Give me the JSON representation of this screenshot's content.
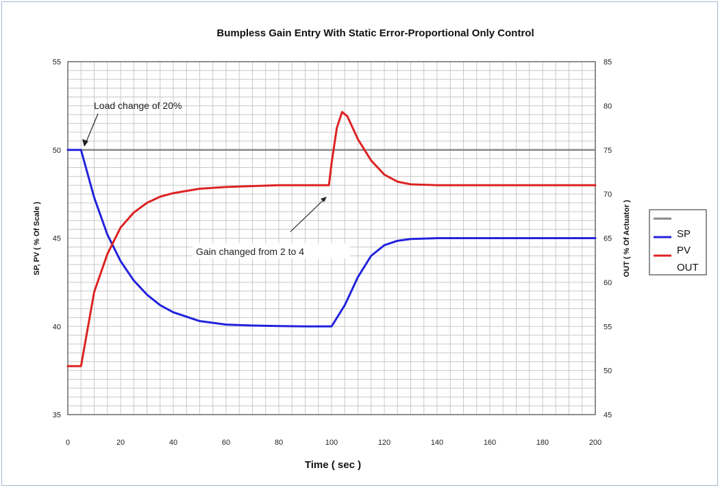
{
  "chart_data": {
    "type": "line",
    "title": "Bumpless Gain Entry With Static Error-Proportional Only Control",
    "xlabel": "Time ( sec )",
    "ylabel_left": "SP, PV ( % Of Scale )",
    "ylabel_right": "OUT ( % Of Actuator )",
    "xlim": [
      0,
      200
    ],
    "ylim_left": [
      35,
      55
    ],
    "ylim_right": [
      45,
      85
    ],
    "x_ticks": [
      "0",
      "20",
      "40",
      "60",
      "80",
      "100",
      "120",
      "140",
      "160",
      "180",
      "200"
    ],
    "y_left_ticks": [
      "35",
      "40",
      "45",
      "50",
      "55"
    ],
    "y_right_ticks": [
      "45",
      "50",
      "55",
      "60",
      "65",
      "70",
      "75",
      "80",
      "85"
    ],
    "grid": true,
    "legend_position": "right",
    "legend": [
      "SP",
      "PV",
      "OUT"
    ],
    "series": [
      {
        "name": "SP",
        "axis": "left",
        "color": "#888888",
        "x": [
          0,
          200
        ],
        "y": [
          50.0,
          50.0
        ]
      },
      {
        "name": "PV",
        "axis": "left",
        "color": "#2222dd",
        "x": [
          0,
          5,
          10,
          15,
          20,
          25,
          30,
          35,
          40,
          50,
          60,
          70,
          80,
          90,
          100,
          105,
          110,
          115,
          120,
          125,
          130,
          140,
          150,
          160,
          170,
          180,
          190,
          200
        ],
        "y": [
          50.0,
          50.0,
          47.3,
          45.2,
          43.7,
          42.6,
          41.8,
          41.2,
          40.8,
          40.3,
          40.1,
          40.05,
          40.02,
          40.0,
          40.0,
          41.2,
          42.8,
          44.0,
          44.6,
          44.85,
          44.95,
          45.0,
          45.0,
          45.0,
          45.0,
          45.0,
          45.0,
          45.0
        ]
      },
      {
        "name": "OUT",
        "axis": "right",
        "color": "#dd2222",
        "x": [
          0,
          5,
          10,
          15,
          20,
          25,
          30,
          35,
          40,
          50,
          60,
          70,
          80,
          90,
          99,
          100,
          102,
          104,
          106,
          108,
          110,
          115,
          120,
          125,
          130,
          140,
          150,
          160,
          170,
          180,
          190,
          200
        ],
        "y": [
          50.5,
          50.5,
          58.9,
          63.2,
          66.2,
          67.9,
          69.0,
          69.7,
          70.1,
          70.6,
          70.8,
          70.9,
          71.0,
          71.0,
          71.0,
          73.5,
          77.5,
          79.3,
          78.8,
          77.5,
          76.2,
          73.8,
          72.2,
          71.4,
          71.1,
          71.0,
          71.0,
          71.0,
          71.0,
          71.0,
          71.0,
          71.0
        ]
      }
    ],
    "annotations": [
      {
        "text": "Load change of 20%"
      },
      {
        "text": "Gain changed from 2 to 4"
      }
    ]
  }
}
